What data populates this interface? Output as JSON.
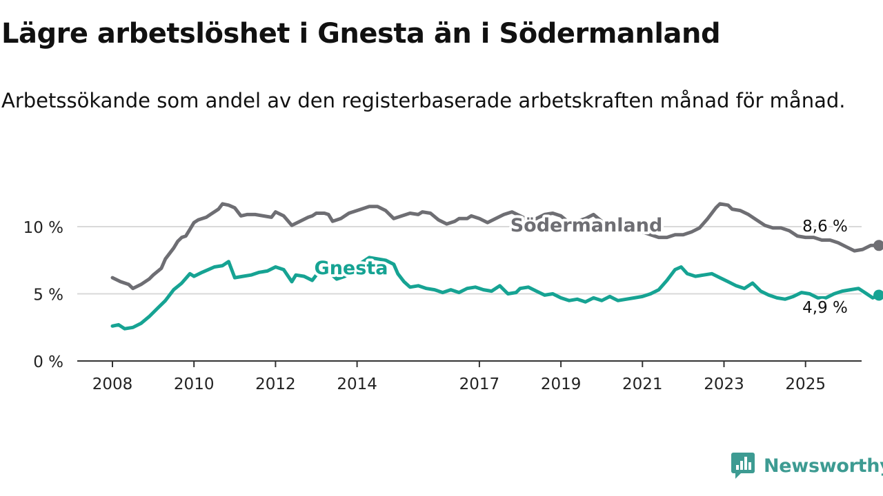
{
  "header": {
    "title": "Lägre arbetslöshet i Gnesta än i Södermanland",
    "subtitle": "Arbetssökande som andel av den registerbaserade arbetskraften månad för månad."
  },
  "brand": {
    "name": "Newsworthy",
    "icon": "newsworthy-logo-icon",
    "color": "#3d9b92"
  },
  "chart_data": {
    "type": "line",
    "title": "Lägre arbetslöshet i Gnesta än i Södermanland",
    "subtitle": "Arbetssökande som andel av den registerbaserade arbetskraften månad för månad.",
    "xlabel": "",
    "ylabel": "",
    "xlim": [
      2007.5,
      2026.9
    ],
    "ylim": [
      0,
      12
    ],
    "x_ticks": [
      2008,
      2010,
      2012,
      2014,
      2017,
      2019,
      2021,
      2023,
      2025
    ],
    "x_tick_labels": [
      "2008",
      "2010",
      "2012",
      "2014",
      "2017",
      "2019",
      "2021",
      "2023",
      "2025"
    ],
    "y_ticks": [
      0,
      5,
      10
    ],
    "y_tick_labels": [
      "0 %",
      "5 %",
      "10 %"
    ],
    "grid": true,
    "legend": "none (series labelled directly on lines)",
    "series": [
      {
        "name": "Södermanland",
        "color": "#6e6e73",
        "end_label": "8,6 %",
        "points": [
          [
            2008.0,
            6.2
          ],
          [
            2008.2,
            5.9
          ],
          [
            2008.4,
            5.7
          ],
          [
            2008.5,
            5.4
          ],
          [
            2008.7,
            5.7
          ],
          [
            2008.9,
            6.1
          ],
          [
            2009.0,
            6.4
          ],
          [
            2009.2,
            6.9
          ],
          [
            2009.3,
            7.6
          ],
          [
            2009.5,
            8.4
          ],
          [
            2009.6,
            8.9
          ],
          [
            2009.7,
            9.2
          ],
          [
            2009.8,
            9.3
          ],
          [
            2009.9,
            9.8
          ],
          [
            2010.0,
            10.3
          ],
          [
            2010.1,
            10.5
          ],
          [
            2010.3,
            10.7
          ],
          [
            2010.4,
            10.9
          ],
          [
            2010.6,
            11.3
          ],
          [
            2010.7,
            11.7
          ],
          [
            2010.85,
            11.6
          ],
          [
            2011.0,
            11.4
          ],
          [
            2011.15,
            10.8
          ],
          [
            2011.3,
            10.9
          ],
          [
            2011.5,
            10.9
          ],
          [
            2011.7,
            10.8
          ],
          [
            2011.9,
            10.7
          ],
          [
            2012.0,
            11.1
          ],
          [
            2012.2,
            10.8
          ],
          [
            2012.4,
            10.1
          ],
          [
            2012.6,
            10.4
          ],
          [
            2012.8,
            10.7
          ],
          [
            2012.9,
            10.8
          ],
          [
            2013.0,
            11.0
          ],
          [
            2013.2,
            11.0
          ],
          [
            2013.3,
            10.9
          ],
          [
            2013.4,
            10.4
          ],
          [
            2013.6,
            10.6
          ],
          [
            2013.8,
            11.0
          ],
          [
            2014.0,
            11.2
          ],
          [
            2014.3,
            11.5
          ],
          [
            2014.5,
            11.5
          ],
          [
            2014.7,
            11.2
          ],
          [
            2014.9,
            10.6
          ],
          [
            2015.1,
            10.8
          ],
          [
            2015.3,
            11.0
          ],
          [
            2015.5,
            10.9
          ],
          [
            2015.6,
            11.1
          ],
          [
            2015.8,
            11.0
          ],
          [
            2016.0,
            10.5
          ],
          [
            2016.2,
            10.2
          ],
          [
            2016.4,
            10.4
          ],
          [
            2016.5,
            10.6
          ],
          [
            2016.7,
            10.6
          ],
          [
            2016.8,
            10.8
          ],
          [
            2017.0,
            10.6
          ],
          [
            2017.2,
            10.3
          ],
          [
            2017.4,
            10.6
          ],
          [
            2017.6,
            10.9
          ],
          [
            2017.8,
            11.1
          ],
          [
            2018.0,
            10.8
          ],
          [
            2018.2,
            10.5
          ],
          [
            2018.4,
            10.6
          ],
          [
            2018.6,
            10.9
          ],
          [
            2018.8,
            11.0
          ],
          [
            2019.0,
            10.8
          ],
          [
            2019.2,
            10.3
          ],
          [
            2019.4,
            10.4
          ],
          [
            2019.6,
            10.6
          ],
          [
            2019.8,
            10.9
          ],
          [
            2020.0,
            10.4
          ],
          [
            2020.2,
            10.2
          ],
          [
            2020.4,
            10.2
          ],
          [
            2020.6,
            10.3
          ],
          [
            2020.7,
            10.4
          ],
          [
            2020.8,
            10.2
          ],
          [
            2021.0,
            9.6
          ],
          [
            2021.2,
            9.4
          ],
          [
            2021.4,
            9.2
          ],
          [
            2021.6,
            9.2
          ],
          [
            2021.8,
            9.4
          ],
          [
            2022.0,
            9.4
          ],
          [
            2022.2,
            9.6
          ],
          [
            2022.4,
            9.9
          ],
          [
            2022.6,
            10.6
          ],
          [
            2022.8,
            11.4
          ],
          [
            2022.9,
            11.7
          ],
          [
            2023.1,
            11.6
          ],
          [
            2023.2,
            11.3
          ],
          [
            2023.4,
            11.2
          ],
          [
            2023.6,
            10.9
          ],
          [
            2023.8,
            10.5
          ],
          [
            2024.0,
            10.1
          ],
          [
            2024.2,
            9.9
          ],
          [
            2024.4,
            9.9
          ],
          [
            2024.6,
            9.7
          ],
          [
            2024.8,
            9.3
          ],
          [
            2025.0,
            9.2
          ],
          [
            2025.2,
            9.2
          ],
          [
            2025.4,
            9.0
          ],
          [
            2025.6,
            9.0
          ],
          [
            2025.8,
            8.8
          ],
          [
            2026.0,
            8.5
          ],
          [
            2026.2,
            8.2
          ],
          [
            2026.4,
            8.3
          ],
          [
            2026.6,
            8.6
          ],
          [
            2026.8,
            8.6
          ]
        ]
      },
      {
        "name": "Gnesta",
        "color": "#16a393",
        "end_label": "4,9 %",
        "points": [
          [
            2008.0,
            2.6
          ],
          [
            2008.15,
            2.7
          ],
          [
            2008.3,
            2.4
          ],
          [
            2008.5,
            2.5
          ],
          [
            2008.7,
            2.8
          ],
          [
            2008.9,
            3.3
          ],
          [
            2009.1,
            3.9
          ],
          [
            2009.3,
            4.5
          ],
          [
            2009.5,
            5.3
          ],
          [
            2009.7,
            5.8
          ],
          [
            2009.9,
            6.5
          ],
          [
            2010.0,
            6.3
          ],
          [
            2010.2,
            6.6
          ],
          [
            2010.35,
            6.8
          ],
          [
            2010.5,
            7.0
          ],
          [
            2010.7,
            7.1
          ],
          [
            2010.85,
            7.4
          ],
          [
            2011.0,
            6.2
          ],
          [
            2011.2,
            6.3
          ],
          [
            2011.4,
            6.4
          ],
          [
            2011.6,
            6.6
          ],
          [
            2011.8,
            6.7
          ],
          [
            2012.0,
            7.0
          ],
          [
            2012.2,
            6.8
          ],
          [
            2012.4,
            5.9
          ],
          [
            2012.5,
            6.4
          ],
          [
            2012.7,
            6.3
          ],
          [
            2012.9,
            6.0
          ],
          [
            2013.0,
            6.4
          ],
          [
            2013.2,
            6.7
          ],
          [
            2013.35,
            6.5
          ],
          [
            2013.5,
            6.1
          ],
          [
            2013.7,
            6.3
          ],
          [
            2013.9,
            6.8
          ],
          [
            2014.1,
            7.3
          ],
          [
            2014.3,
            7.7
          ],
          [
            2014.5,
            7.6
          ],
          [
            2014.7,
            7.5
          ],
          [
            2014.9,
            7.2
          ],
          [
            2015.0,
            6.5
          ],
          [
            2015.15,
            5.9
          ],
          [
            2015.3,
            5.5
          ],
          [
            2015.5,
            5.6
          ],
          [
            2015.7,
            5.4
          ],
          [
            2015.9,
            5.3
          ],
          [
            2016.1,
            5.1
          ],
          [
            2016.3,
            5.3
          ],
          [
            2016.5,
            5.1
          ],
          [
            2016.7,
            5.4
          ],
          [
            2016.9,
            5.5
          ],
          [
            2017.1,
            5.3
          ],
          [
            2017.3,
            5.2
          ],
          [
            2017.5,
            5.6
          ],
          [
            2017.7,
            5.0
          ],
          [
            2017.9,
            5.1
          ],
          [
            2018.0,
            5.4
          ],
          [
            2018.2,
            5.5
          ],
          [
            2018.4,
            5.2
          ],
          [
            2018.6,
            4.9
          ],
          [
            2018.8,
            5.0
          ],
          [
            2019.0,
            4.7
          ],
          [
            2019.2,
            4.5
          ],
          [
            2019.4,
            4.6
          ],
          [
            2019.6,
            4.4
          ],
          [
            2019.8,
            4.7
          ],
          [
            2020.0,
            4.5
          ],
          [
            2020.2,
            4.8
          ],
          [
            2020.4,
            4.5
          ],
          [
            2020.6,
            4.6
          ],
          [
            2020.8,
            4.7
          ],
          [
            2021.0,
            4.8
          ],
          [
            2021.2,
            5.0
          ],
          [
            2021.4,
            5.3
          ],
          [
            2021.6,
            6.0
          ],
          [
            2021.8,
            6.8
          ],
          [
            2021.95,
            7.0
          ],
          [
            2022.1,
            6.5
          ],
          [
            2022.3,
            6.3
          ],
          [
            2022.5,
            6.4
          ],
          [
            2022.7,
            6.5
          ],
          [
            2022.9,
            6.2
          ],
          [
            2023.1,
            5.9
          ],
          [
            2023.3,
            5.6
          ],
          [
            2023.5,
            5.4
          ],
          [
            2023.7,
            5.8
          ],
          [
            2023.9,
            5.2
          ],
          [
            2024.1,
            4.9
          ],
          [
            2024.3,
            4.7
          ],
          [
            2024.5,
            4.6
          ],
          [
            2024.7,
            4.8
          ],
          [
            2024.9,
            5.1
          ],
          [
            2025.1,
            5.0
          ],
          [
            2025.3,
            4.7
          ],
          [
            2025.5,
            4.7
          ],
          [
            2025.7,
            5.0
          ],
          [
            2025.9,
            5.2
          ],
          [
            2026.1,
            5.3
          ],
          [
            2026.3,
            5.4
          ],
          [
            2026.5,
            5.0
          ],
          [
            2026.65,
            4.7
          ],
          [
            2026.8,
            4.9
          ]
        ]
      }
    ]
  }
}
